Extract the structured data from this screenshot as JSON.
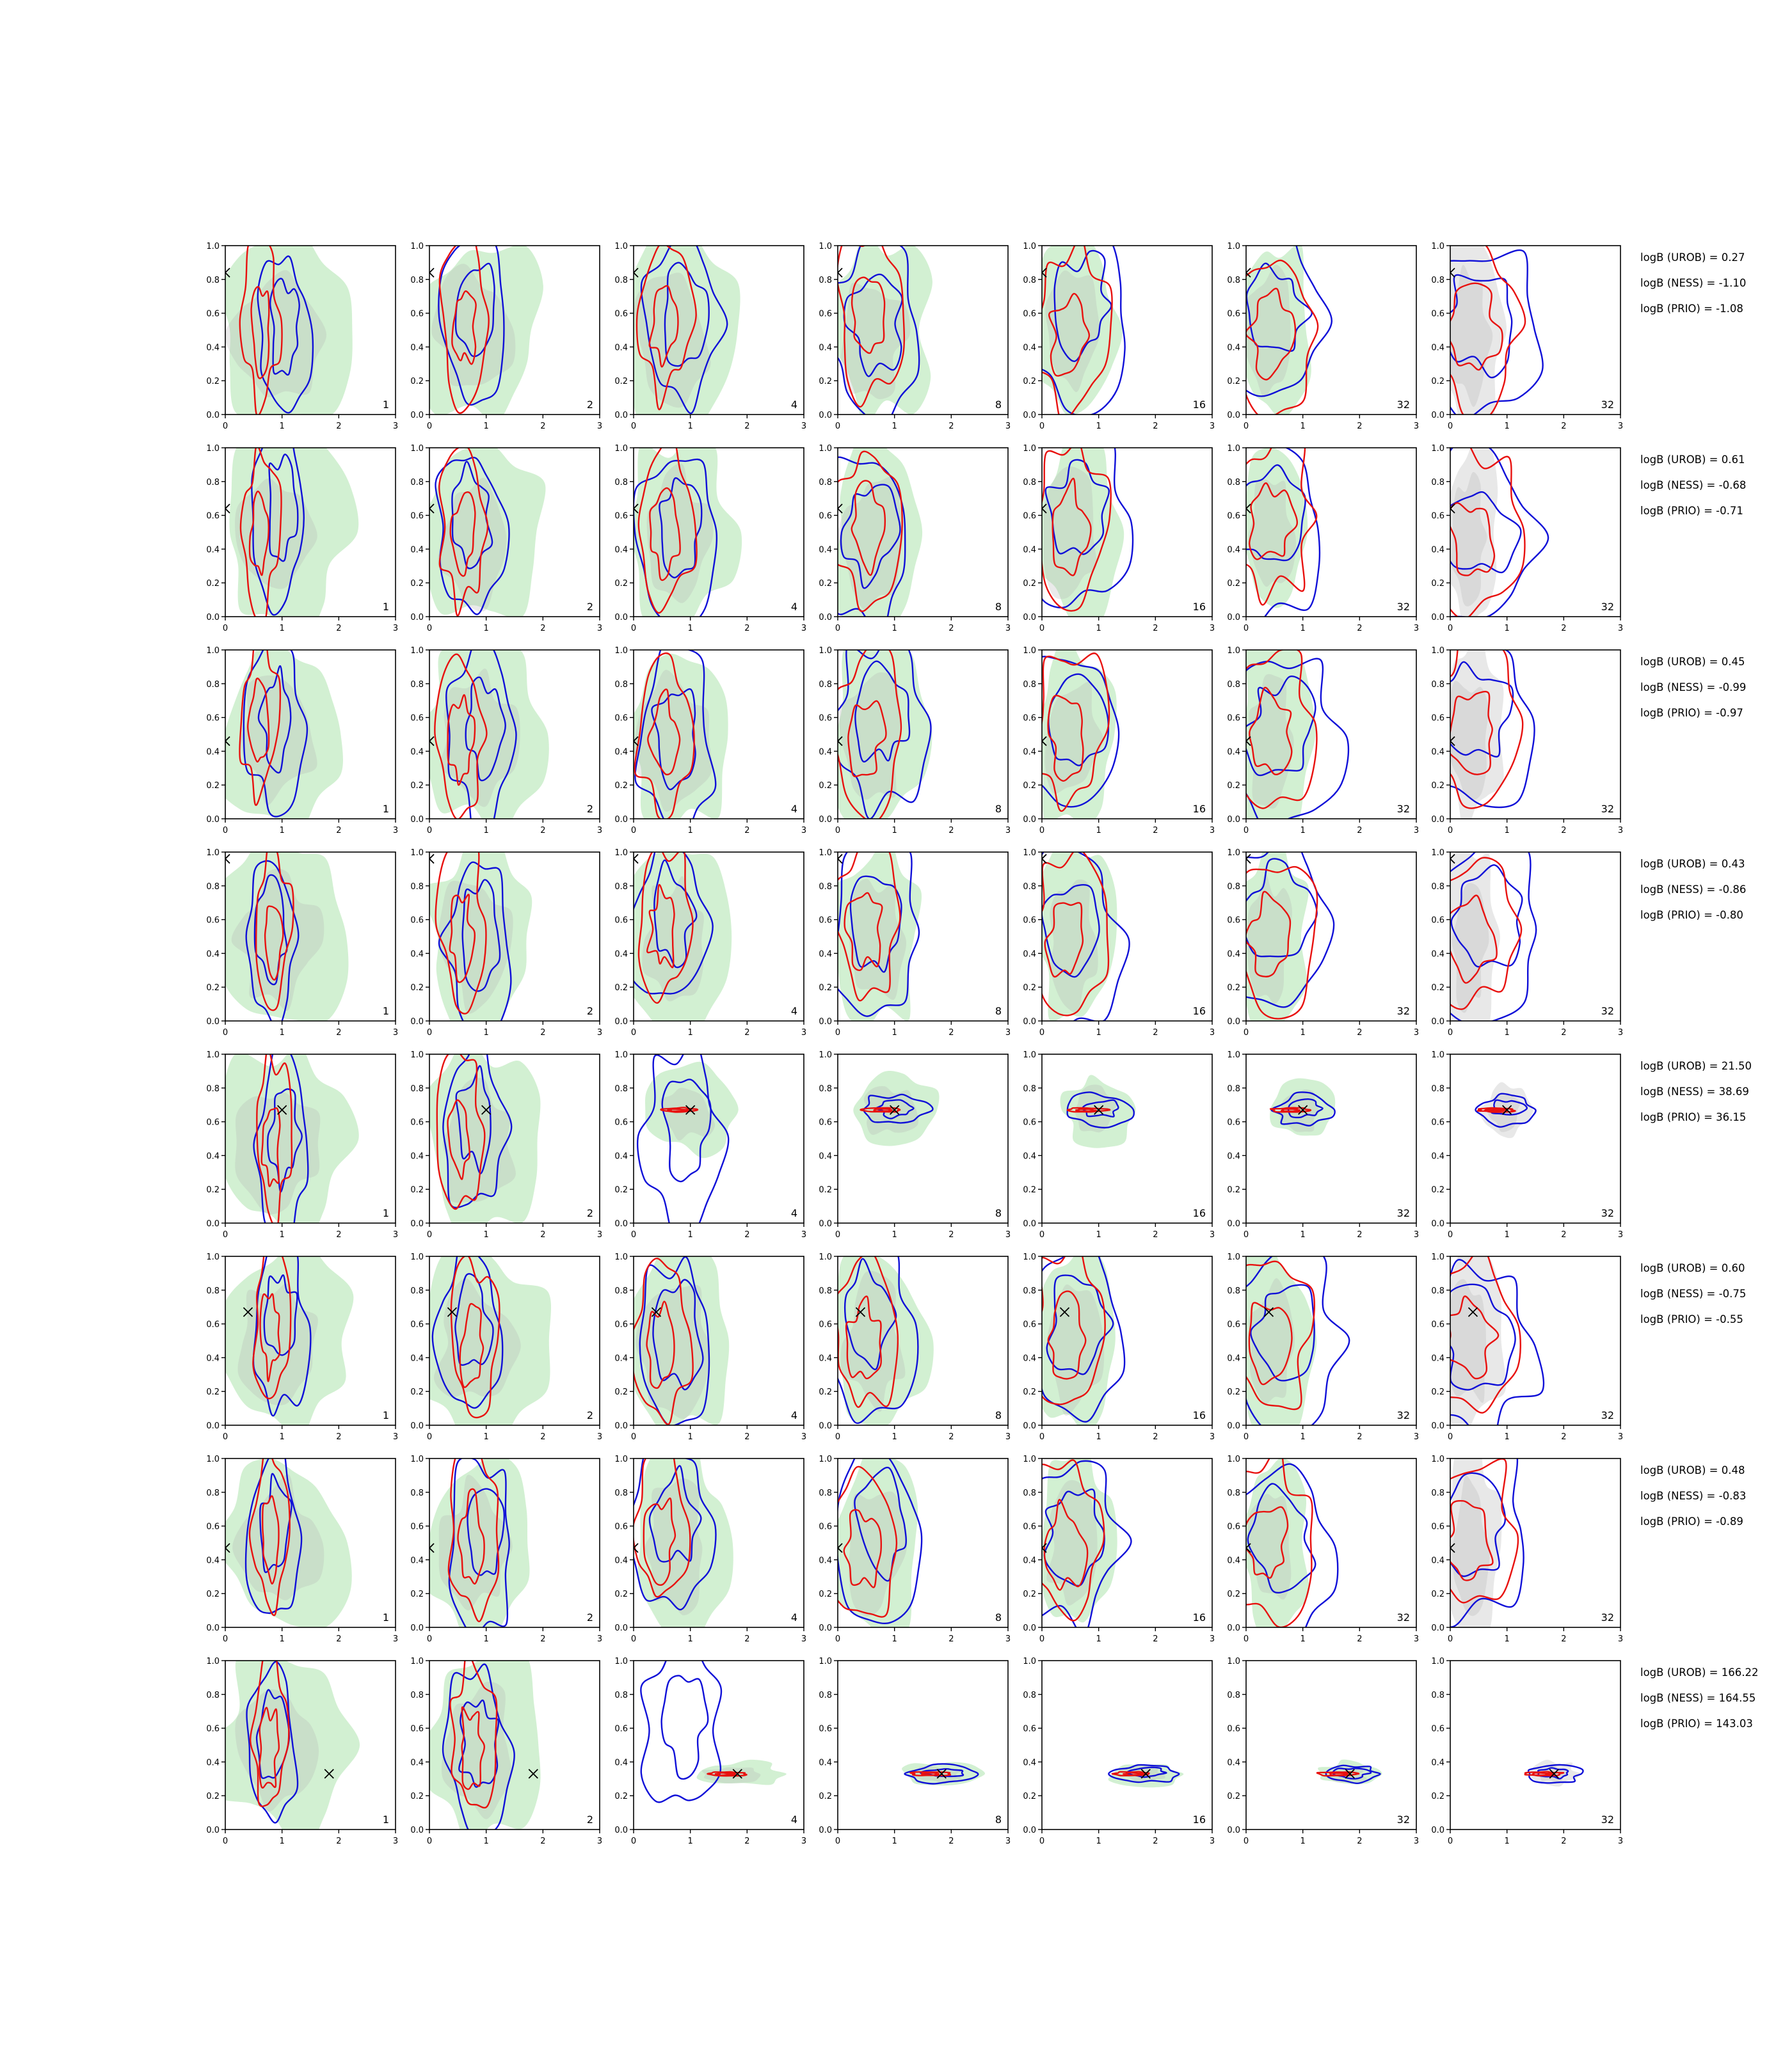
{
  "chart_data": {
    "type": "contour-grid",
    "rows": 8,
    "cols": 7,
    "xlim": [
      0,
      3
    ],
    "ylim": [
      0,
      1
    ],
    "x_ticks": [
      "0",
      "1",
      "2",
      "3"
    ],
    "y_ticks": [
      "0.0",
      "0.2",
      "0.4",
      "0.6",
      "0.8",
      "1.0"
    ],
    "column_labels": [
      "1",
      "2",
      "4",
      "8",
      "16",
      "32",
      "32"
    ],
    "colors": {
      "fill_green": "#bfe9bf",
      "fill_grey": "#b4b4b4",
      "red_contour": "#e8110f",
      "blue_contour": "#1010d8",
      "marker": "#000000"
    },
    "true_points": [
      {
        "x": 0.0,
        "y": 0.84
      },
      {
        "x": 0.0,
        "y": 0.64
      },
      {
        "x": 0.0,
        "y": 0.46
      },
      {
        "x": 0.0,
        "y": 0.96
      },
      {
        "x": 1.0,
        "y": 0.67
      },
      {
        "x": 0.4,
        "y": 0.67
      },
      {
        "x": 0.0,
        "y": 0.47
      },
      {
        "x": 1.83,
        "y": 0.33
      }
    ],
    "row_annotations": [
      [
        "logB (UROB) = 0.27",
        "logB (NESS) = -1.10",
        "logB (PRIO) = -1.08"
      ],
      [
        "logB (UROB) = 0.61",
        "logB (NESS) = -0.68",
        "logB (PRIO) = -0.71"
      ],
      [
        "logB (UROB) = 0.45",
        "logB (NESS) = -0.99",
        "logB (PRIO) = -0.97"
      ],
      [
        "logB (UROB) = 0.43",
        "logB (NESS) = -0.86",
        "logB (PRIO) = -0.80"
      ],
      [
        "logB (UROB) = 21.50",
        "logB (NESS) = 38.69",
        "logB (PRIO) = 36.15"
      ],
      [
        "logB (UROB) = 0.60",
        "logB (NESS) = -0.75",
        "logB (PRIO) = -0.55"
      ],
      [
        "logB (UROB) = 0.48",
        "logB (NESS) = -0.83",
        "logB (PRIO) = -0.89"
      ],
      [
        "logB (UROB) = 166.22",
        "logB (NESS) = 164.55",
        "logB (PRIO) = 143.03"
      ]
    ]
  }
}
